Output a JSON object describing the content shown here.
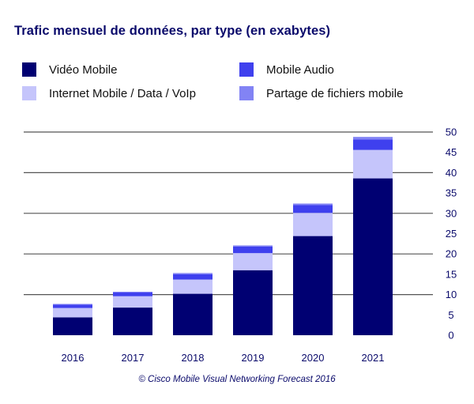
{
  "chart_data": {
    "type": "bar",
    "stacked": true,
    "title": "Trafic mensuel de données, par type (en exabytes)",
    "categories": [
      "2016",
      "2017",
      "2018",
      "2019",
      "2020",
      "2021"
    ],
    "series": [
      {
        "name": "Vidéo Mobile",
        "color": "#000072",
        "values": [
          4.4,
          6.8,
          10.2,
          16.0,
          24.4,
          38.6
        ]
      },
      {
        "name": "Internet Mobile / Data / VoIp",
        "color": "#c5c5fb",
        "values": [
          2.3,
          2.8,
          3.5,
          4.2,
          5.7,
          7.0
        ]
      },
      {
        "name": "Mobile Audio",
        "color": "#3f40ee",
        "values": [
          0.8,
          0.9,
          1.3,
          1.6,
          1.9,
          2.6
        ]
      },
      {
        "name": "Partage de fichiers mobile",
        "color": "#8283f4",
        "values": [
          0.2,
          0.2,
          0.3,
          0.3,
          0.4,
          0.6
        ]
      }
    ],
    "yticks": [
      "0",
      "5",
      "10",
      "15",
      "20",
      "25",
      "30",
      "35",
      "40",
      "45",
      "50"
    ],
    "ylim": [
      0,
      50
    ],
    "gridlines": [
      10,
      20,
      30,
      40,
      50
    ],
    "yaxis_position": "right",
    "legend_position": "top",
    "xlabel": "",
    "ylabel": ""
  },
  "credit": "© Cisco Mobile Visual Networking Forecast 2016"
}
